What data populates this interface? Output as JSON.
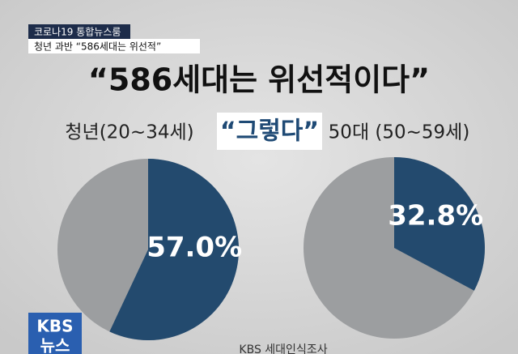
{
  "header": {
    "program": "코로나19 통합뉴스룸",
    "headline": "청년 과반 “586세대는 위선적”"
  },
  "title": "“586세대는 위선적이다”",
  "subtitle": "“그렇다”",
  "logo": {
    "line1": "KBS",
    "line2": "뉴스"
  },
  "source": "KBS 세대인식조사",
  "chart_data": [
    {
      "type": "pie",
      "title": "청년(20~34세)",
      "values": [
        57.0
      ],
      "value_labels": [
        "57.0%"
      ],
      "color": "#234a6e",
      "rest_color": "#9c9ea0"
    },
    {
      "type": "pie",
      "title": "50대 (50~59세)",
      "values": [
        32.8
      ],
      "value_labels": [
        "32.8%"
      ],
      "color": "#234a6e",
      "rest_color": "#9c9ea0"
    }
  ]
}
